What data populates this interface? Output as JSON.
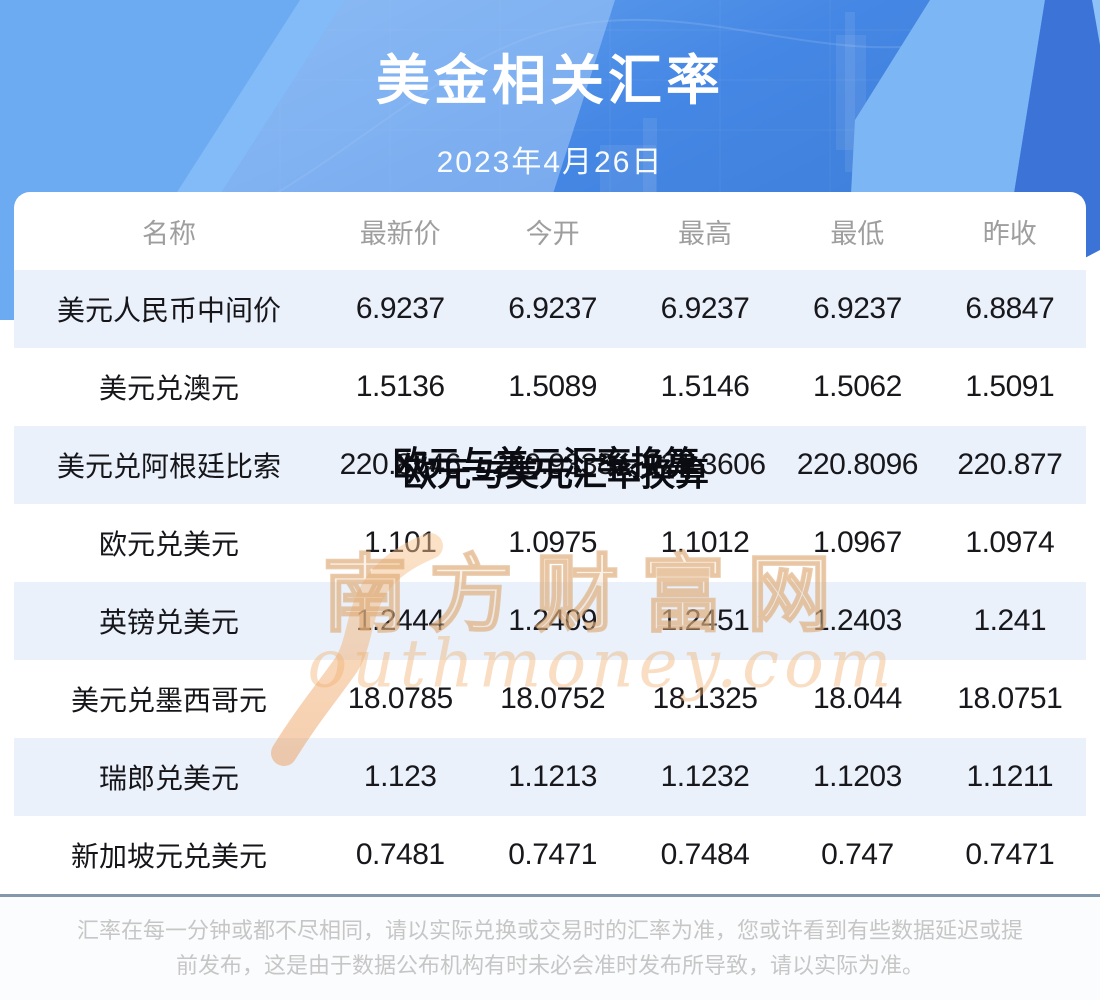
{
  "header": {
    "title": "美金相关汇率",
    "date": "2023年4月26日"
  },
  "table": {
    "columns": [
      "名称",
      "最新价",
      "今开",
      "最高",
      "最低",
      "昨收"
    ],
    "rows": [
      {
        "name": "美元人民币中间价",
        "values": [
          "6.9237",
          "6.9237",
          "6.9237",
          "6.9237",
          "6.8847"
        ]
      },
      {
        "name": "美元兑澳元",
        "values": [
          "1.5136",
          "1.5089",
          "1.5146",
          "1.5062",
          "1.5091"
        ]
      },
      {
        "name": "美元兑阿根廷比索",
        "values": [
          "220.8546",
          "220.9338",
          "221.3606",
          "220.8096",
          "220.877"
        ]
      },
      {
        "name": "欧元兑美元",
        "values": [
          "1.101",
          "1.0975",
          "1.1012",
          "1.0967",
          "1.0974"
        ]
      },
      {
        "name": "英镑兑美元",
        "values": [
          "1.2444",
          "1.2409",
          "1.2451",
          "1.2403",
          "1.241"
        ]
      },
      {
        "name": "美元兑墨西哥元",
        "values": [
          "18.0785",
          "18.0752",
          "18.1325",
          "18.044",
          "18.0751"
        ]
      },
      {
        "name": "瑞郎兑美元",
        "values": [
          "1.123",
          "1.1213",
          "1.1232",
          "1.1203",
          "1.1211"
        ]
      },
      {
        "name": "新加坡元兑美元",
        "values": [
          "0.7481",
          "0.7471",
          "0.7484",
          "0.747",
          "0.7471"
        ]
      }
    ]
  },
  "overlay": {
    "text": "欧元与美元汇率换算"
  },
  "watermark": {
    "cn": "南方财富网",
    "en": "outhmoney.com"
  },
  "footer": {
    "lines": [
      "汇率在每一分钟或都不尽相同，请以实际兑换或交易时的汇率为准，您或许看到有些数据延迟或提",
      "前发布，这是由于数据公布机构有时未必会准时发布所导致，请以实际为准。"
    ]
  },
  "colors": {
    "header_blue": "#4a8ce6",
    "row_alt": "#eaf1fa",
    "divider": "#8398ad",
    "column_header_text": "#9e9e9e",
    "body_text": "#17171c",
    "footer_text": "#c6c6c6",
    "watermark_orange": "#efaf78",
    "title_text": "#ffffff"
  }
}
